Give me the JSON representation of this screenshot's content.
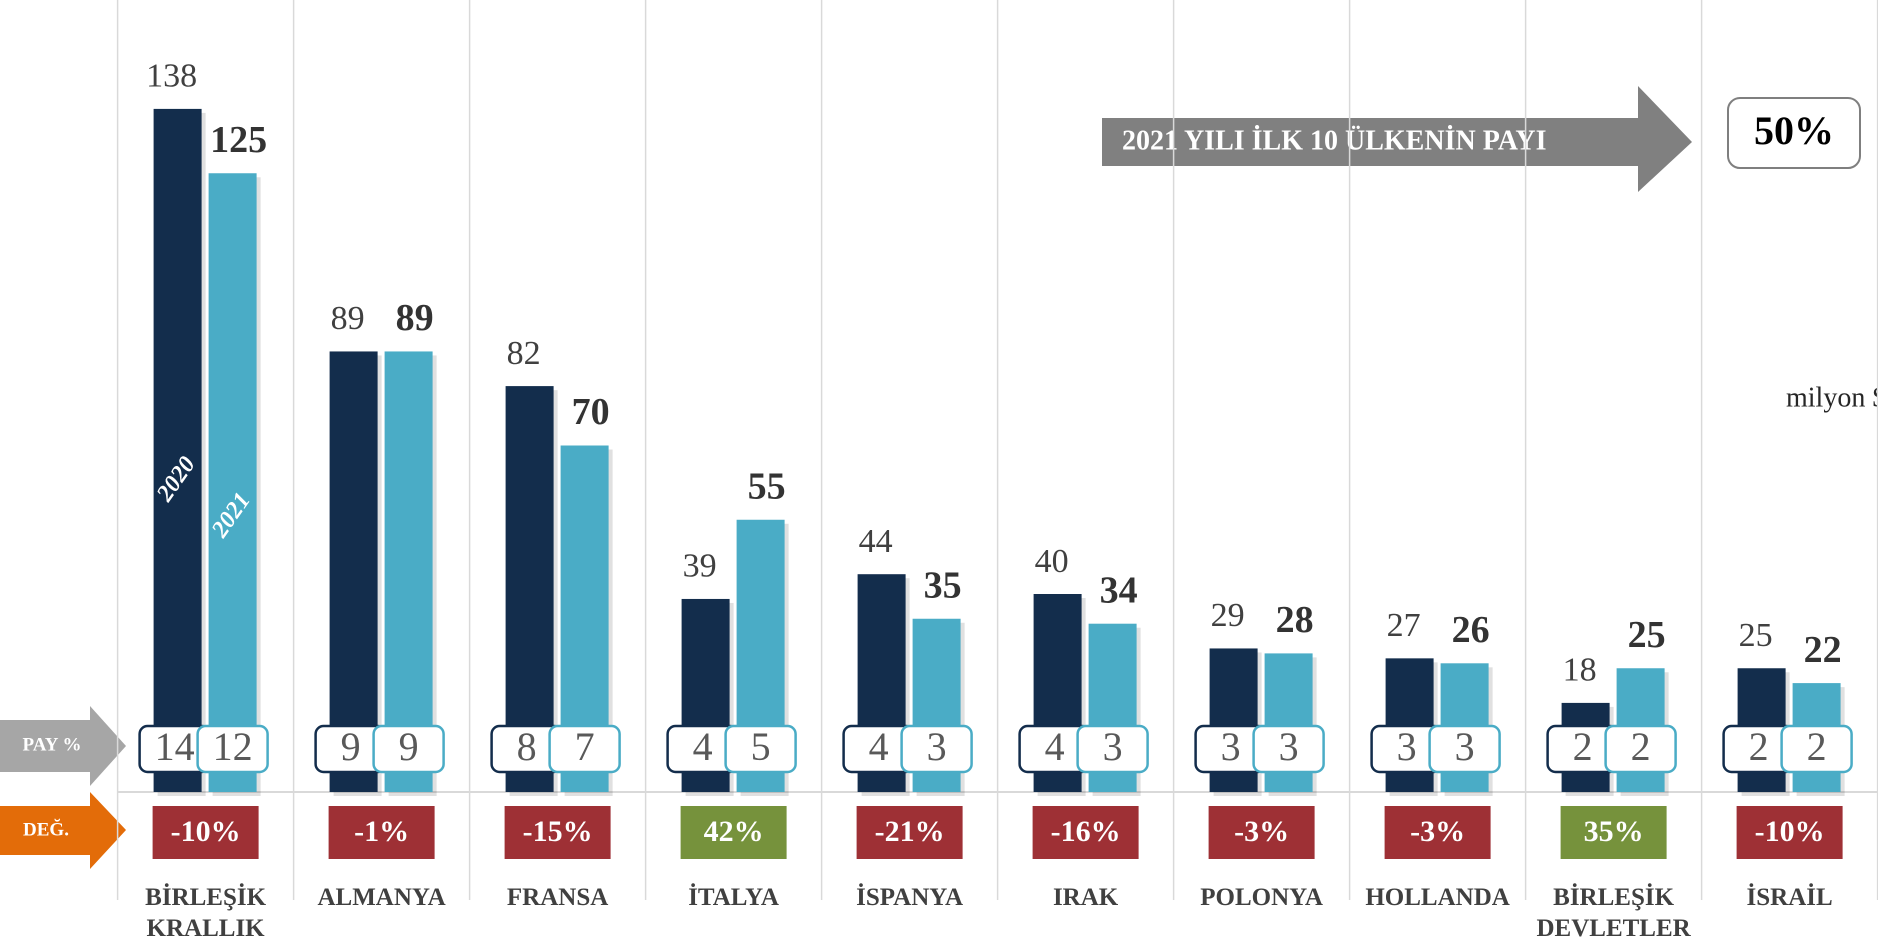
{
  "chart_data": {
    "type": "bar",
    "categories": [
      "BİRLEŞİK KRALLIK",
      "ALMANYA",
      "FRANSA",
      "İTALYA",
      "İSPANYA",
      "IRAK",
      "POLONYA",
      "HOLLANDA",
      "BİRLEŞİK DEVLETLER",
      "İSRAİL"
    ],
    "series": [
      {
        "name": "2020",
        "color": "#132d4c",
        "values": [
          138,
          89,
          82,
          39,
          44,
          40,
          29,
          27,
          18,
          25
        ],
        "shares": [
          14,
          9,
          8,
          4,
          4,
          4,
          3,
          3,
          2,
          2
        ]
      },
      {
        "name": "2021",
        "color": "#4aacc6",
        "values": [
          125,
          89,
          70,
          55,
          35,
          34,
          28,
          26,
          25,
          22
        ],
        "shares": [
          12,
          9,
          7,
          5,
          3,
          3,
          3,
          3,
          2,
          2
        ]
      }
    ],
    "changes": [
      -10,
      -1,
      -15,
      42,
      -21,
      -16,
      -3,
      -3,
      35,
      -10
    ],
    "change_labels": [
      "-10%",
      "-1%",
      "-15%",
      "42%",
      "-21%",
      "-16%",
      "-3%",
      "-3%",
      "35%",
      "-10%"
    ],
    "change_colors": {
      "negative": "#9e3035",
      "positive": "#76923c"
    },
    "ylim": [
      0,
      160
    ],
    "unit": "milyon $",
    "share_axis_label": "PAY %",
    "change_axis_label": "DEĞ.",
    "share_title": "2021 YILI İLK 10 ÜLKENİN PAYI",
    "share_total": 50,
    "share_total_label": "50%"
  }
}
